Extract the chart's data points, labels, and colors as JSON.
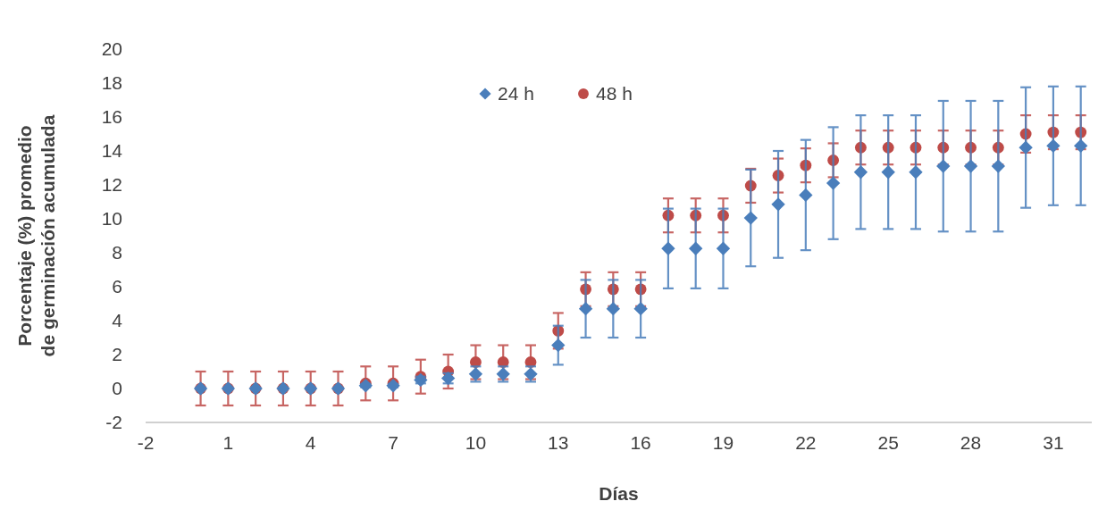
{
  "chart_data": {
    "type": "scatter",
    "xlabel": "Días",
    "ylabel": "Porcentaje (%) promedio\nde germinación acumulada",
    "x": [
      0,
      1,
      2,
      3,
      4,
      5,
      6,
      7,
      8,
      9,
      10,
      11,
      12,
      13,
      14,
      15,
      16,
      17,
      18,
      19,
      20,
      21,
      22,
      23,
      24,
      25,
      26,
      27,
      28,
      29,
      30,
      31,
      32
    ],
    "xlim": [
      -2,
      32.4
    ],
    "xticks": [
      -2,
      1,
      4,
      7,
      10,
      13,
      16,
      19,
      22,
      25,
      28,
      31
    ],
    "ylim": [
      -2,
      20
    ],
    "yticks": [
      -2,
      0,
      2,
      4,
      6,
      8,
      10,
      12,
      14,
      16,
      18,
      20
    ],
    "grid": false,
    "legend": "top",
    "series": [
      {
        "name": "24 h",
        "color": "#4a7ebb",
        "marker": "diamond",
        "values": [
          0,
          0,
          0,
          0,
          0,
          0,
          0.17,
          0.17,
          0.5,
          0.6,
          0.85,
          0.85,
          0.85,
          2.55,
          4.7,
          4.7,
          4.7,
          8.25,
          8.25,
          8.25,
          10.05,
          10.85,
          11.4,
          12.1,
          12.75,
          12.75,
          12.75,
          13.1,
          13.1,
          13.1,
          14.2,
          14.3,
          14.3
        ],
        "errors": [
          null,
          null,
          null,
          null,
          null,
          null,
          0.1,
          0.1,
          0.2,
          0.3,
          0.45,
          0.45,
          0.45,
          1.15,
          1.7,
          1.7,
          1.7,
          2.35,
          2.35,
          2.35,
          2.85,
          3.15,
          3.25,
          3.3,
          3.35,
          3.35,
          3.35,
          3.85,
          3.85,
          3.85,
          3.55,
          3.5,
          3.5
        ]
      },
      {
        "name": "48 h",
        "color": "#be4b48",
        "marker": "circle",
        "values": [
          0,
          0,
          0,
          0,
          0,
          0,
          0.3,
          0.3,
          0.7,
          1.0,
          1.55,
          1.55,
          1.55,
          3.4,
          5.85,
          5.85,
          5.85,
          10.2,
          10.2,
          10.2,
          11.95,
          12.55,
          13.15,
          13.45,
          14.2,
          14.2,
          14.2,
          14.2,
          14.2,
          14.2,
          15.0,
          15.1,
          15.1
        ],
        "errors": [
          1,
          1,
          1,
          1,
          1,
          1,
          1,
          1,
          1,
          1,
          1,
          1,
          1,
          1.05,
          1,
          1,
          1,
          1,
          1,
          1,
          1,
          1,
          1,
          1,
          1,
          1,
          1,
          1,
          1,
          1,
          1.1,
          1,
          1
        ]
      }
    ]
  }
}
